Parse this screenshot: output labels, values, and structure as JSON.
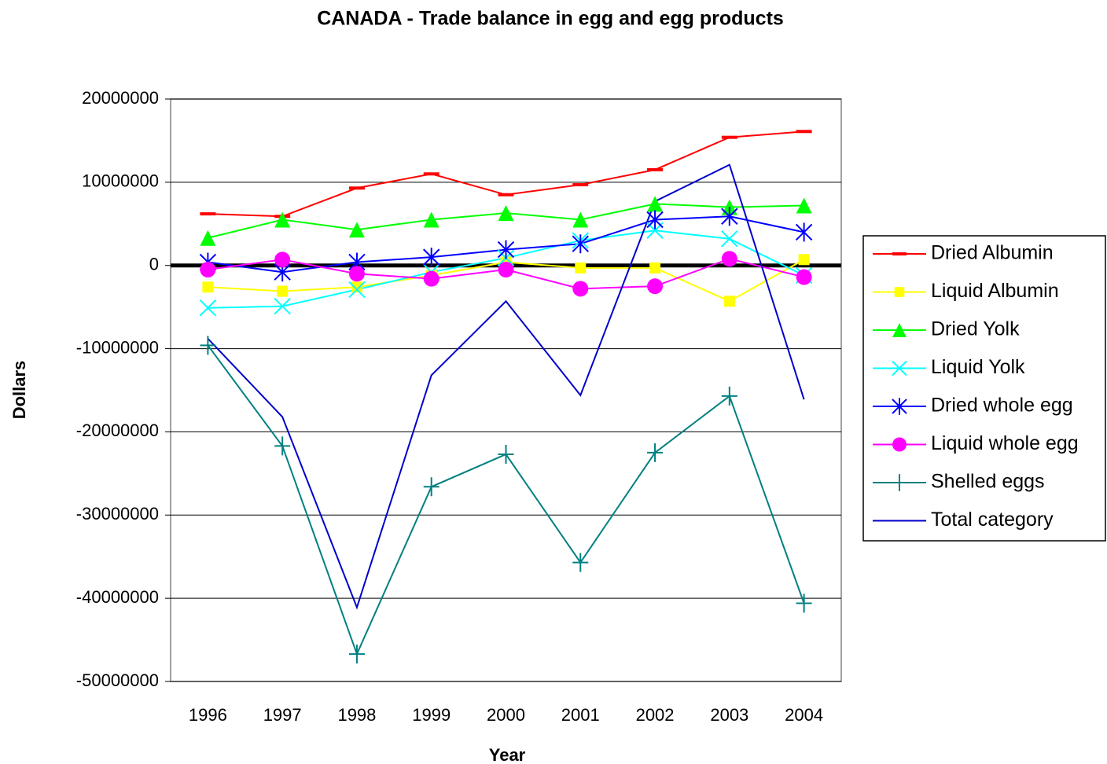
{
  "chart_data": {
    "type": "line",
    "title": "CANADA - Trade balance in egg and egg products",
    "x_label": "Year",
    "y_label": "Dollars",
    "categories": [
      "1996",
      "1997",
      "1998",
      "1999",
      "2000",
      "2001",
      "2002",
      "2003",
      "2004"
    ],
    "ylim": [
      -50000000,
      20000000
    ],
    "yticks": [
      -50000000,
      -40000000,
      -30000000,
      -20000000,
      -10000000,
      0,
      10000000,
      20000000
    ],
    "grid": true,
    "zero_line": true,
    "legend": "right",
    "series": [
      {
        "name": "Dried Albumin",
        "color": "#ff0000",
        "marker": "dash",
        "values": [
          6200000,
          5900000,
          9300000,
          11000000,
          8500000,
          9700000,
          11500000,
          15400000,
          16100000
        ]
      },
      {
        "name": "Liquid Albumin",
        "color": "#ffff00",
        "marker": "square",
        "values": [
          -2600000,
          -3100000,
          -2600000,
          -1200000,
          400000,
          -300000,
          -300000,
          -4300000,
          700000
        ]
      },
      {
        "name": "Dried Yolk",
        "color": "#00ff00",
        "marker": "triangle",
        "values": [
          3300000,
          5500000,
          4300000,
          5500000,
          6300000,
          5500000,
          7400000,
          7000000,
          7200000
        ]
      },
      {
        "name": "Liquid Yolk",
        "color": "#00ffff",
        "marker": "x",
        "values": [
          -5100000,
          -4900000,
          -2900000,
          -800000,
          900000,
          3000000,
          4200000,
          3200000,
          -1200000
        ]
      },
      {
        "name": "Dried whole egg",
        "color": "#0000ff",
        "marker": "asterisk",
        "values": [
          400000,
          -800000,
          400000,
          1000000,
          1900000,
          2600000,
          5500000,
          5900000,
          4000000
        ]
      },
      {
        "name": "Liquid whole egg",
        "color": "#ff00ff",
        "marker": "circle",
        "values": [
          -500000,
          700000,
          -1000000,
          -1600000,
          -500000,
          -2800000,
          -2500000,
          800000,
          -1400000
        ]
      },
      {
        "name": "Shelled eggs",
        "color": "#008080",
        "marker": "plus",
        "values": [
          -9600000,
          -21700000,
          -46700000,
          -26600000,
          -22700000,
          -35700000,
          -22500000,
          -15700000,
          -40600000
        ]
      },
      {
        "name": "Total category",
        "color": "#0000cc",
        "marker": "none",
        "values": [
          -8800000,
          -18200000,
          -41100000,
          -13200000,
          -4300000,
          -15600000,
          7700000,
          12100000,
          -16100000
        ]
      }
    ]
  }
}
